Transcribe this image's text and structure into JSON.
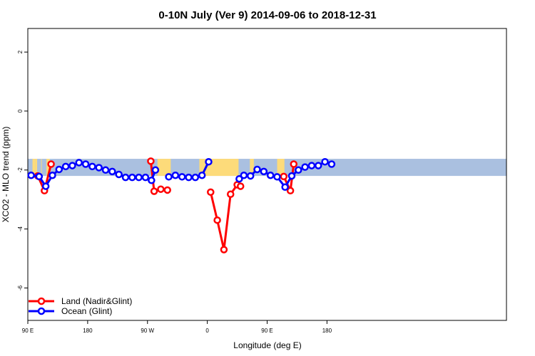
{
  "chart_data": {
    "type": "line",
    "title": "0-10N July (Ver 9)   2014-09-06 to 2018-12-31",
    "xlabel": "Longitude (deg E)",
    "ylabel": "XCO2 - MLO trend (ppm)",
    "xlim": [
      90,
      450
    ],
    "ylim": [
      -7.1,
      2.8
    ],
    "x_ticks": [
      {
        "value": 90,
        "label": "90 E"
      },
      {
        "value": 180,
        "label": "180"
      },
      {
        "value": 270,
        "label": "90 W"
      },
      {
        "value": 360,
        "label": "0"
      },
      {
        "value": 450,
        "label": "90 E"
      },
      {
        "value": 540,
        "label": "180"
      }
    ],
    "y_ticks": [
      {
        "value": 2,
        "label": "2"
      },
      {
        "value": 0,
        "label": "0"
      },
      {
        "value": -2,
        "label": "-2"
      },
      {
        "value": -4,
        "label": "-4"
      },
      {
        "value": -6,
        "label": "-6"
      }
    ],
    "grid": false,
    "legend_position": "bottom-left",
    "band": {
      "y_min": -2.2,
      "y_max": -1.62,
      "ocean_color": "#aac0e0",
      "land_color": "#fddb7a"
    },
    "land_regions": [
      [
        97,
        101
      ],
      [
        101,
        104
      ],
      [
        110,
        111
      ],
      [
        118,
        123
      ],
      [
        285,
        305
      ],
      [
        348,
        407
      ],
      [
        424,
        430
      ],
      [
        465,
        476
      ]
    ],
    "series": [
      {
        "name": "Land (Nadir&Glint)",
        "color": "#ff0000",
        "segments": [
          {
            "x": [
              105,
              115,
              125
            ],
            "y": [
              -2.2,
              -2.7,
              -1.8
            ]
          },
          {
            "x": [
              275,
              280,
              290,
              300
            ],
            "y": [
              -1.7,
              -2.72,
              -2.65,
              -2.68
            ]
          },
          {
            "x": [
              365,
              375,
              385,
              395,
              405,
              410
            ],
            "y": [
              -2.75,
              -3.7,
              -4.7,
              -2.82,
              -2.5,
              -2.55
            ]
          },
          {
            "x": [
              475,
              485,
              490
            ],
            "y": [
              -2.22,
              -2.7,
              -1.8
            ]
          }
        ]
      },
      {
        "name": "Ocean (Glint)",
        "color": "#0000ff",
        "segments": [
          {
            "x": [
              95,
              107,
              117,
              127,
              137,
              147,
              157,
              167,
              177,
              187,
              197,
              207,
              217,
              227,
              237,
              247,
              257,
              267,
              276,
              282
            ],
            "y": [
              -2.18,
              -2.22,
              -2.55,
              -2.18,
              -1.98,
              -1.88,
              -1.85,
              -1.75,
              -1.8,
              -1.88,
              -1.92,
              -2.0,
              -2.05,
              -2.15,
              -2.25,
              -2.25,
              -2.25,
              -2.25,
              -2.35,
              -2.0
            ]
          },
          {
            "x": [
              302,
              312,
              322,
              332,
              342,
              352,
              362
            ],
            "y": [
              -2.23,
              -2.18,
              -2.23,
              -2.25,
              -2.25,
              -2.18,
              -1.72
            ]
          },
          {
            "x": [
              408,
              415,
              425,
              435,
              445,
              455,
              465,
              477,
              487,
              497,
              507,
              517,
              527,
              537,
              547
            ],
            "y": [
              -2.3,
              -2.18,
              -2.2,
              -1.98,
              -2.05,
              -2.18,
              -2.23,
              -2.58,
              -2.2,
              -2.0,
              -1.9,
              -1.85,
              -1.85,
              -1.72,
              -1.8
            ]
          }
        ]
      }
    ]
  }
}
